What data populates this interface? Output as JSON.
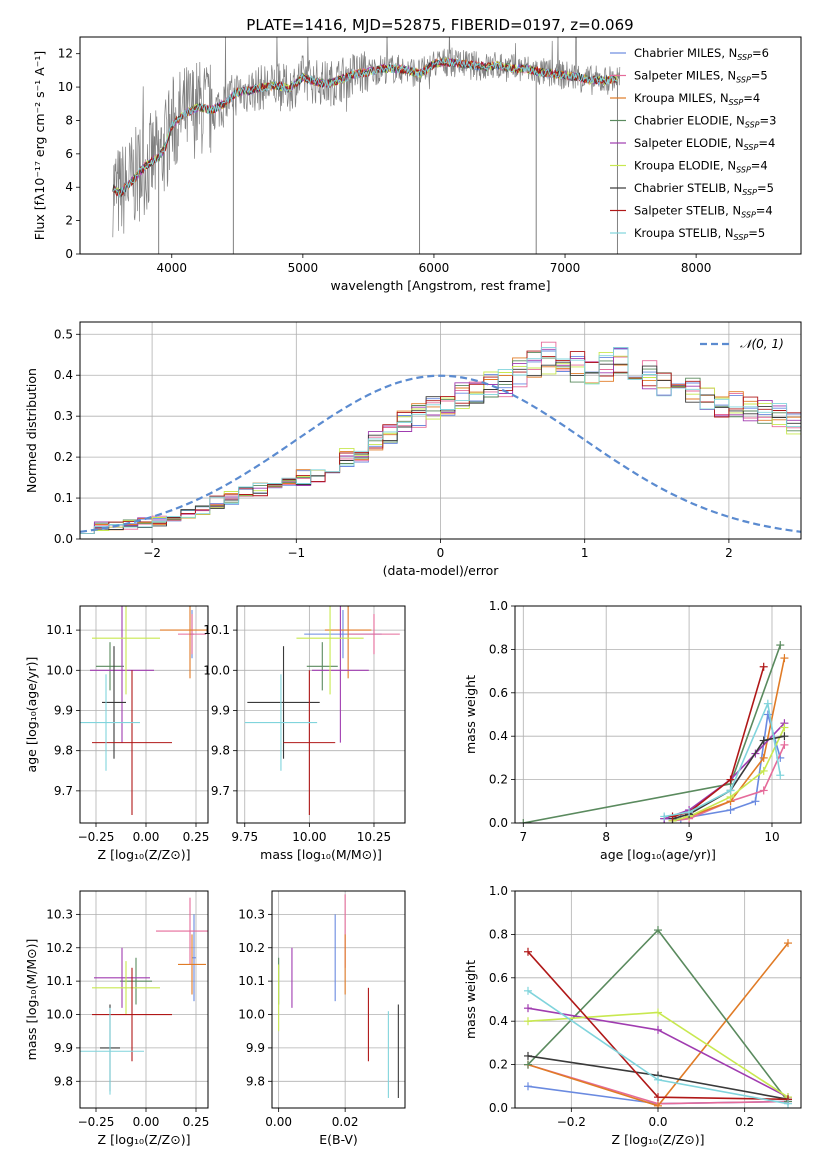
{
  "figure": {
    "title": "PLATE=1416, MJD=52875, FIBERID=0197, z=0.069"
  },
  "palette": {
    "Chabrier MILES": "#6a8ae0",
    "Salpeter MILES": "#e56b9a",
    "Kroupa MILES": "#e07b26",
    "Chabrier ELODIE": "#5a8a5e",
    "Salpeter ELODIE": "#a03cb0",
    "Kroupa ELODIE": "#c8e850",
    "Chabrier STELIB": "#3a3a3a",
    "Salpeter STELIB": "#b01818",
    "Kroupa STELIB": "#80d4dc",
    "data": "#808080",
    "normal": "#5b8bd0"
  },
  "chart_data": [
    {
      "id": "spectrum",
      "type": "line",
      "xlabel": "wavelength [Angstrom, rest frame]",
      "ylabel": "Flux [fλ10⁻¹⁷ erg cm⁻² s⁻¹ A⁻¹]",
      "xlim": [
        3300,
        8800
      ],
      "ylim": [
        0,
        13
      ],
      "xticks": [
        4000,
        5000,
        6000,
        7000,
        8000
      ],
      "yticks": [
        0,
        2,
        4,
        6,
        8,
        10,
        12
      ],
      "grid": false,
      "legend_position": "top-right",
      "model_x": [
        3550,
        3600,
        3700,
        3800,
        3900,
        3950,
        4000,
        4100,
        4200,
        4300,
        4400,
        4500,
        4600,
        4700,
        4800,
        4900,
        5000,
        5100,
        5200,
        5300,
        5400,
        5500,
        5600,
        5700,
        5800,
        5900,
        6000,
        6100,
        6200,
        6300,
        6400,
        6500,
        6600,
        6700,
        6800,
        6900,
        7000,
        7100,
        7200,
        7300,
        7400
      ],
      "model_y": [
        4.0,
        3.6,
        4.4,
        5.3,
        5.8,
        6.4,
        7.7,
        8.4,
        8.8,
        8.6,
        9.0,
        9.7,
        9.8,
        10.0,
        10.1,
        9.9,
        10.6,
        10.3,
        10.2,
        10.5,
        10.8,
        10.9,
        11.1,
        11.1,
        11.0,
        10.8,
        11.4,
        11.5,
        11.4,
        11.3,
        11.2,
        11.3,
        11.1,
        11.1,
        10.9,
        10.8,
        10.7,
        10.6,
        10.4,
        10.4,
        10.5
      ],
      "data_x_range": [
        3550,
        7420
      ],
      "data_spikes": [
        {
          "x": 3900,
          "y": 0
        },
        {
          "x": 4470,
          "y": 0
        },
        {
          "x": 5890,
          "y": 0
        },
        {
          "x": 6780,
          "y": 0
        },
        {
          "x": 7400,
          "y": 0
        }
      ],
      "series": [
        {
          "name": "Chabrier MILES, N",
          "nssp": "6"
        },
        {
          "name": "Salpeter MILES, N",
          "nssp": "5"
        },
        {
          "name": "Kroupa MILES, N",
          "nssp": "4"
        },
        {
          "name": "Chabrier ELODIE, N",
          "nssp": "3"
        },
        {
          "name": "Salpeter ELODIE, N",
          "nssp": "4"
        },
        {
          "name": "Kroupa ELODIE, N",
          "nssp": "4"
        },
        {
          "name": "Chabrier STELIB, N",
          "nssp": "5"
        },
        {
          "name": "Salpeter STELIB, N",
          "nssp": "4"
        },
        {
          "name": "Kroupa STELIB, N",
          "nssp": "5"
        }
      ],
      "nssp_sub": "SSP"
    },
    {
      "id": "residuals",
      "type": "line",
      "xlabel": "(data-model)/error",
      "ylabel": "Normed distribution",
      "xlim": [
        -2.5,
        2.5
      ],
      "ylim": [
        0,
        0.53
      ],
      "xticks": [
        -2,
        -1,
        0,
        1,
        2
      ],
      "xtick_labels": [
        "−2",
        "−1",
        "0",
        "1",
        "2"
      ],
      "yticks": [
        0.0,
        0.1,
        0.2,
        0.3,
        0.4,
        0.5
      ],
      "ytick_labels": [
        "0.0",
        "0.1",
        "0.2",
        "0.3",
        "0.4",
        "0.5"
      ],
      "grid": true,
      "legend": "𝒩(0, 1)",
      "legend_position": "top-right",
      "bin_width": 0.1,
      "bin_start": -2.5,
      "base_hist": [
        0.025,
        0.03,
        0.03,
        0.035,
        0.04,
        0.045,
        0.055,
        0.065,
        0.07,
        0.09,
        0.1,
        0.11,
        0.12,
        0.13,
        0.15,
        0.15,
        0.16,
        0.17,
        0.2,
        0.21,
        0.24,
        0.26,
        0.29,
        0.3,
        0.32,
        0.33,
        0.35,
        0.36,
        0.38,
        0.38,
        0.41,
        0.42,
        0.44,
        0.43,
        0.42,
        0.41,
        0.42,
        0.43,
        0.41,
        0.4,
        0.38,
        0.36,
        0.36,
        0.35,
        0.33,
        0.33,
        0.32,
        0.31,
        0.3,
        0.28,
        0.26,
        0.25,
        0.23,
        0.22,
        0.2,
        0.18,
        0.16,
        0.15,
        0.14,
        0.13,
        0.12,
        0.1,
        0.1,
        0.09,
        0.08,
        0.07,
        0.07,
        0.06,
        0.05,
        0.045,
        0.045,
        0.04,
        0.035,
        0.035,
        0.03,
        0.03,
        0.025,
        0.03,
        0.03,
        0.03,
        0.03,
        0.035,
        0.04,
        0.04,
        0.035,
        0.035,
        0.03,
        0.03,
        0.03,
        0.03,
        0.035,
        0.04,
        0.045,
        0.05,
        0.05,
        0.05,
        0.055,
        0.05,
        0.05,
        0.06
      ]
    },
    {
      "id": "age-vs-Z",
      "type": "scatter",
      "xlabel": "Z [log₁₀(Z/Z⊙)]",
      "ylabel": "age  [log₁₀(age/yr)]",
      "xlim": [
        -0.33,
        0.31
      ],
      "ylim": [
        9.62,
        10.16
      ],
      "xticks": [
        -0.25,
        0.0,
        0.25
      ],
      "xtick_labels": [
        "−0.25",
        "0.00",
        "0.25"
      ],
      "yticks": [
        9.7,
        9.8,
        9.9,
        10.0,
        10.1
      ],
      "ytick_labels": [
        "9.7",
        "9.8",
        "9.9",
        "10.0",
        "10.1"
      ],
      "grid": true,
      "points": [
        {
          "series": "Chabrier MILES",
          "x": 0.23,
          "xerr": 0.01,
          "y": 10.09,
          "yerr": 0.06
        },
        {
          "series": "Salpeter MILES",
          "x": 0.23,
          "xerr": 0.07,
          "y": 10.09,
          "yerr": 0.05
        },
        {
          "series": "Kroupa MILES",
          "x": 0.22,
          "xerr": 0.15,
          "y": 10.1,
          "yerr": 0.12
        },
        {
          "series": "Chabrier ELODIE",
          "x": -0.18,
          "xerr": 0.07,
          "y": 10.01,
          "yerr": 0.06
        },
        {
          "series": "Salpeter ELODIE",
          "x": -0.12,
          "xerr": 0.16,
          "y": 10.0,
          "yerr": 0.18
        },
        {
          "series": "Kroupa ELODIE",
          "x": -0.1,
          "xerr": 0.17,
          "y": 10.08,
          "yerr": 0.14
        },
        {
          "series": "Chabrier STELIB",
          "x": -0.16,
          "xerr": 0.06,
          "y": 9.92,
          "yerr": 0.14
        },
        {
          "series": "Salpeter STELIB",
          "x": -0.07,
          "xerr": 0.2,
          "y": 9.82,
          "yerr": 0.18
        },
        {
          "series": "Kroupa STELIB",
          "x": -0.2,
          "xerr": 0.17,
          "y": 9.87,
          "yerr": 0.12
        }
      ]
    },
    {
      "id": "age-vs-mass",
      "type": "scatter",
      "xlabel": "mass [log₁₀(M/M⊙)]",
      "ylabel": "",
      "xlim": [
        9.72,
        10.37
      ],
      "ylim": [
        9.62,
        10.16
      ],
      "xticks": [
        9.75,
        10.0,
        10.25
      ],
      "xtick_labels": [
        "9.75",
        "10.00",
        "10.25"
      ],
      "yticks": [
        9.7,
        9.8,
        9.9,
        10.0,
        10.1
      ],
      "ytick_labels": [
        "9.7",
        "9.8",
        "9.9",
        "10.0",
        "10.1"
      ],
      "grid": true,
      "points": [
        {
          "series": "Chabrier MILES",
          "x": 10.13,
          "xerr": 0.15,
          "y": 10.09,
          "yerr": 0.06
        },
        {
          "series": "Salpeter MILES",
          "x": 10.25,
          "xerr": 0.1,
          "y": 10.09,
          "yerr": 0.05
        },
        {
          "series": "Kroupa MILES",
          "x": 10.15,
          "xerr": 0.09,
          "y": 10.1,
          "yerr": 0.12
        },
        {
          "series": "Chabrier ELODIE",
          "x": 10.05,
          "xerr": 0.06,
          "y": 10.01,
          "yerr": 0.06
        },
        {
          "series": "Salpeter ELODIE",
          "x": 10.12,
          "xerr": 0.11,
          "y": 10.0,
          "yerr": 0.18
        },
        {
          "series": "Kroupa ELODIE",
          "x": 10.08,
          "xerr": 0.13,
          "y": 10.08,
          "yerr": 0.14
        },
        {
          "series": "Chabrier STELIB",
          "x": 9.9,
          "xerr": 0.14,
          "y": 9.92,
          "yerr": 0.14
        },
        {
          "series": "Salpeter STELIB",
          "x": 10.0,
          "xerr": 0.1,
          "y": 9.82,
          "yerr": 0.18
        },
        {
          "series": "Kroupa STELIB",
          "x": 9.89,
          "xerr": 0.14,
          "y": 9.87,
          "yerr": 0.12
        }
      ]
    },
    {
      "id": "weight-vs-age",
      "type": "line",
      "xlabel": "age  [log₁₀(age/yr)]",
      "ylabel": "mass weight",
      "xlim": [
        6.9,
        10.35
      ],
      "ylim": [
        0,
        1
      ],
      "xticks": [
        7,
        8,
        9,
        10
      ],
      "xtick_labels": [
        "7",
        "8",
        "9",
        "10"
      ],
      "yticks": [
        0.0,
        0.2,
        0.4,
        0.6,
        0.8,
        1.0
      ],
      "ytick_labels": [
        "0.0",
        "0.2",
        "0.4",
        "0.6",
        "0.8",
        "1.0"
      ],
      "grid": true,
      "series": [
        {
          "name": "Chabrier MILES",
          "x": [
            8.7,
            8.9,
            9.5,
            9.8,
            9.95,
            10.1
          ],
          "y": [
            0.02,
            0.02,
            0.06,
            0.1,
            0.5,
            0.3
          ]
        },
        {
          "name": "Salpeter MILES",
          "x": [
            8.8,
            9.0,
            9.5,
            9.9,
            10.15
          ],
          "y": [
            0.01,
            0.02,
            0.1,
            0.15,
            0.36
          ]
        },
        {
          "name": "Kroupa MILES",
          "x": [
            8.8,
            9.0,
            9.5,
            9.9,
            10.15
          ],
          "y": [
            0.01,
            0.03,
            0.1,
            0.3,
            0.76
          ]
        },
        {
          "name": "Chabrier ELODIE",
          "x": [
            7.0,
            9.5,
            10.1
          ],
          "y": [
            0.0,
            0.18,
            0.82
          ]
        },
        {
          "name": "Salpeter ELODIE",
          "x": [
            8.7,
            9.0,
            9.5,
            9.8,
            10.15
          ],
          "y": [
            0.02,
            0.06,
            0.2,
            0.32,
            0.46
          ]
        },
        {
          "name": "Kroupa ELODIE",
          "x": [
            8.8,
            9.0,
            9.5,
            9.9,
            10.15
          ],
          "y": [
            0.01,
            0.03,
            0.12,
            0.24,
            0.44
          ]
        },
        {
          "name": "Chabrier STELIB",
          "x": [
            8.8,
            9.0,
            9.5,
            9.9,
            10.15
          ],
          "y": [
            0.02,
            0.04,
            0.15,
            0.38,
            0.4
          ]
        },
        {
          "name": "Salpeter STELIB",
          "x": [
            8.8,
            9.0,
            9.5,
            9.9
          ],
          "y": [
            0.03,
            0.05,
            0.2,
            0.72
          ]
        },
        {
          "name": "Kroupa STELIB",
          "x": [
            8.7,
            9.0,
            9.5,
            9.95,
            10.1
          ],
          "y": [
            0.03,
            0.05,
            0.15,
            0.55,
            0.22
          ]
        }
      ]
    },
    {
      "id": "mass-vs-Z",
      "type": "scatter",
      "xlabel": "Z [log₁₀(Z/Z⊙)]",
      "ylabel": "mass [log₁₀(M/M⊙)]",
      "xlim": [
        -0.33,
        0.31
      ],
      "ylim": [
        9.72,
        10.37
      ],
      "xticks": [
        -0.25,
        0.0,
        0.25
      ],
      "xtick_labels": [
        "−0.25",
        "0.00",
        "0.25"
      ],
      "yticks": [
        9.8,
        9.9,
        10.0,
        10.1,
        10.2,
        10.3
      ],
      "ytick_labels": [
        "9.8",
        "9.9",
        "10.0",
        "10.1",
        "10.2",
        "10.3"
      ],
      "grid": true,
      "points": [
        {
          "series": "Chabrier MILES",
          "x": 0.24,
          "xerr": 0.01,
          "y": 10.17,
          "yerr": 0.13
        },
        {
          "series": "Salpeter MILES",
          "x": 0.22,
          "xerr": 0.17,
          "y": 10.25,
          "yerr": 0.1
        },
        {
          "series": "Kroupa MILES",
          "x": 0.23,
          "xerr": 0.07,
          "y": 10.15,
          "yerr": 0.09
        },
        {
          "series": "Chabrier ELODIE",
          "x": -0.05,
          "xerr": 0.08,
          "y": 10.1,
          "yerr": 0.07
        },
        {
          "series": "Salpeter ELODIE",
          "x": -0.12,
          "xerr": 0.14,
          "y": 10.11,
          "yerr": 0.09
        },
        {
          "series": "Kroupa ELODIE",
          "x": -0.1,
          "xerr": 0.17,
          "y": 10.08,
          "yerr": 0.08
        },
        {
          "series": "Chabrier STELIB",
          "x": -0.18,
          "xerr": 0.05,
          "y": 9.9,
          "yerr": 0.13
        },
        {
          "series": "Salpeter STELIB",
          "x": -0.07,
          "xerr": 0.2,
          "y": 10.0,
          "yerr": 0.14
        },
        {
          "series": "Kroupa STELIB",
          "x": -0.18,
          "xerr": 0.17,
          "y": 9.89,
          "yerr": 0.13
        }
      ]
    },
    {
      "id": "mass-vs-EBV",
      "type": "scatter",
      "xlabel": "E(B-V)",
      "ylabel": "",
      "xlim": [
        -0.002,
        0.038
      ],
      "ylim": [
        9.72,
        10.37
      ],
      "xticks": [
        0.0,
        0.02
      ],
      "xtick_labels": [
        "0.00",
        "0.02"
      ],
      "yticks": [
        9.8,
        9.9,
        10.0,
        10.1,
        10.2,
        10.3
      ],
      "ytick_labels": [
        "9.8",
        "9.9",
        "10.0",
        "10.1",
        "10.2",
        "10.3"
      ],
      "grid": true,
      "points": [
        {
          "series": "Chabrier MILES",
          "x": 0.017,
          "xerr": 0,
          "y": 10.17,
          "yerr": 0.13
        },
        {
          "series": "Salpeter MILES",
          "x": 0.02,
          "xerr": 0,
          "y": 10.25,
          "yerr": 0.11
        },
        {
          "series": "Kroupa MILES",
          "x": 0.02,
          "xerr": 0,
          "y": 10.15,
          "yerr": 0.09
        },
        {
          "series": "Chabrier ELODIE",
          "x": 0.0,
          "xerr": 0,
          "y": 10.1,
          "yerr": 0.07
        },
        {
          "series": "Salpeter ELODIE",
          "x": 0.004,
          "xerr": 0,
          "y": 10.11,
          "yerr": 0.09
        },
        {
          "series": "Kroupa ELODIE",
          "x": 0.0,
          "xerr": 0,
          "y": 10.05,
          "yerr": 0.1
        },
        {
          "series": "Chabrier STELIB",
          "x": 0.036,
          "xerr": 0,
          "y": 9.89,
          "yerr": 0.14
        },
        {
          "series": "Salpeter STELIB",
          "x": 0.027,
          "xerr": 0,
          "y": 9.97,
          "yerr": 0.11
        },
        {
          "series": "Kroupa STELIB",
          "x": 0.033,
          "xerr": 0,
          "y": 9.88,
          "yerr": 0.13
        }
      ]
    },
    {
      "id": "weight-vs-Z",
      "type": "line",
      "xlabel": "Z [log₁₀(Z/Z⊙)]",
      "ylabel": "mass weight",
      "xlim": [
        -0.33,
        0.33
      ],
      "ylim": [
        0,
        1
      ],
      "xticks": [
        -0.2,
        0.0,
        0.2
      ],
      "xtick_labels": [
        "−0.2",
        "0.0",
        "0.2"
      ],
      "yticks": [
        0.0,
        0.2,
        0.4,
        0.6,
        0.8,
        1.0
      ],
      "ytick_labels": [
        "0.0",
        "0.2",
        "0.4",
        "0.6",
        "0.8",
        "1.0"
      ],
      "grid": true,
      "series": [
        {
          "name": "Chabrier MILES",
          "x": [
            -0.3,
            0.0,
            0.3
          ],
          "y": [
            0.1,
            0.02,
            0.03
          ]
        },
        {
          "name": "Salpeter MILES",
          "x": [
            -0.3,
            0.0,
            0.3
          ],
          "y": [
            0.2,
            0.02,
            0.03
          ]
        },
        {
          "name": "Kroupa MILES",
          "x": [
            -0.3,
            0.0,
            0.3
          ],
          "y": [
            0.2,
            0.01,
            0.76
          ]
        },
        {
          "name": "Chabrier ELODIE",
          "x": [
            -0.3,
            0.0,
            0.3
          ],
          "y": [
            0.2,
            0.82,
            0.03
          ]
        },
        {
          "name": "Salpeter ELODIE",
          "x": [
            -0.3,
            0.0,
            0.3
          ],
          "y": [
            0.46,
            0.36,
            0.05
          ]
        },
        {
          "name": "Kroupa ELODIE",
          "x": [
            -0.3,
            0.0,
            0.3
          ],
          "y": [
            0.4,
            0.44,
            0.05
          ]
        },
        {
          "name": "Chabrier STELIB",
          "x": [
            -0.3,
            0.0,
            0.3
          ],
          "y": [
            0.24,
            0.15,
            0.04
          ]
        },
        {
          "name": "Salpeter STELIB",
          "x": [
            -0.3,
            0.0,
            0.3
          ],
          "y": [
            0.72,
            0.05,
            0.04
          ]
        },
        {
          "name": "Kroupa STELIB",
          "x": [
            -0.3,
            0.0,
            0.3
          ],
          "y": [
            0.54,
            0.13,
            0.02
          ]
        }
      ]
    }
  ]
}
